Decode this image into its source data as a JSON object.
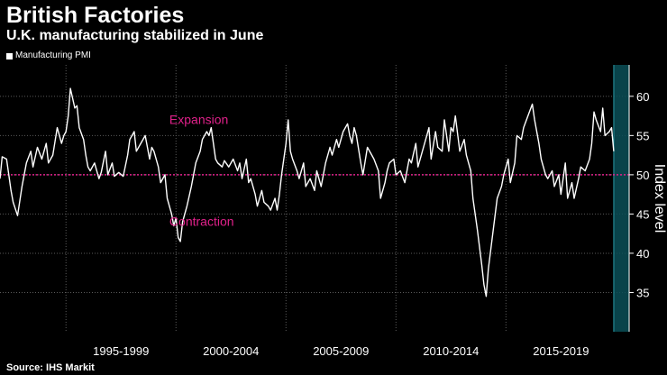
{
  "header": {
    "title": "British Factories",
    "subtitle": "U.K. manufacturing stabilized in June"
  },
  "footer": {
    "source": "Source: IHS Markit"
  },
  "colors": {
    "background": "#000000",
    "line": "#ffffff",
    "reference": "#e0218a",
    "highlight": "#0b4f57",
    "grid": "#5a5a5a"
  },
  "chart_data": {
    "type": "line",
    "title": "British Factories",
    "subtitle": "U.K. manufacturing stabilized in June",
    "ylabel": "Index level",
    "xlabel": "",
    "ylim": [
      30,
      64
    ],
    "xlim": [
      1992.0,
      2020.6
    ],
    "yticks": [
      35,
      40,
      45,
      50,
      55,
      60
    ],
    "period_labels": [
      {
        "label": "1995-1999",
        "from": 1995,
        "to": 2000
      },
      {
        "label": "2000-2004",
        "from": 2000,
        "to": 2005
      },
      {
        "label": "2005-2009",
        "from": 2005,
        "to": 2010
      },
      {
        "label": "2010-2014",
        "from": 2010,
        "to": 2015
      },
      {
        "label": "2015-2019",
        "from": 2015,
        "to": 2020
      }
    ],
    "legend": [
      "Manufacturing PMI"
    ],
    "reference_line": {
      "value": 50
    },
    "annotations": [
      {
        "text": "Expansion",
        "x": 1999.7,
        "y": 56.5
      },
      {
        "text": "Contraction",
        "x": 1999.7,
        "y": 43.5
      }
    ],
    "highlight_range": [
      2019.9,
      2020.6
    ],
    "series": [
      {
        "name": "Manufacturing PMI",
        "points": [
          [
            1992.0,
            49.5
          ],
          [
            1992.1,
            52.3
          ],
          [
            1992.3,
            52.0
          ],
          [
            1992.5,
            48.0
          ],
          [
            1992.6,
            46.5
          ],
          [
            1992.8,
            44.8
          ],
          [
            1993.0,
            48.5
          ],
          [
            1993.2,
            51.5
          ],
          [
            1993.4,
            53.0
          ],
          [
            1993.5,
            51.0
          ],
          [
            1993.7,
            53.5
          ],
          [
            1993.9,
            52.0
          ],
          [
            1994.1,
            54.0
          ],
          [
            1994.2,
            51.5
          ],
          [
            1994.4,
            52.5
          ],
          [
            1994.6,
            56.0
          ],
          [
            1994.8,
            54.0
          ],
          [
            1994.9,
            55.0
          ],
          [
            1995.0,
            55.5
          ],
          [
            1995.1,
            57.5
          ],
          [
            1995.2,
            61.0
          ],
          [
            1995.4,
            58.5
          ],
          [
            1995.5,
            58.8
          ],
          [
            1995.6,
            56.0
          ],
          [
            1995.8,
            54.5
          ],
          [
            1995.9,
            52.5
          ],
          [
            1996.0,
            51.0
          ],
          [
            1996.1,
            50.5
          ],
          [
            1996.3,
            51.5
          ],
          [
            1996.5,
            49.5
          ],
          [
            1996.6,
            50.3
          ],
          [
            1996.8,
            53.0
          ],
          [
            1996.9,
            50.0
          ],
          [
            1997.1,
            51.5
          ],
          [
            1997.2,
            49.8
          ],
          [
            1997.4,
            50.3
          ],
          [
            1997.6,
            49.8
          ],
          [
            1997.8,
            52.5
          ],
          [
            1997.9,
            54.5
          ],
          [
            1998.1,
            55.5
          ],
          [
            1998.2,
            53.0
          ],
          [
            1998.4,
            54.0
          ],
          [
            1998.6,
            55.0
          ],
          [
            1998.8,
            52.0
          ],
          [
            1998.9,
            53.5
          ],
          [
            1999.0,
            53.0
          ],
          [
            1999.2,
            51.0
          ],
          [
            1999.3,
            49.0
          ],
          [
            1999.5,
            50.0
          ],
          [
            1999.6,
            47.0
          ],
          [
            1999.8,
            45.0
          ],
          [
            1999.9,
            43.5
          ],
          [
            2000.0,
            44.5
          ],
          [
            2000.1,
            42.0
          ],
          [
            2000.2,
            41.5
          ],
          [
            2000.3,
            44.0
          ],
          [
            2000.5,
            46.0
          ],
          [
            2000.7,
            48.5
          ],
          [
            2000.9,
            51.5
          ],
          [
            2001.1,
            53.0
          ],
          [
            2001.2,
            54.5
          ],
          [
            2001.4,
            55.5
          ],
          [
            2001.5,
            55.0
          ],
          [
            2001.6,
            56.0
          ],
          [
            2001.8,
            52.0
          ],
          [
            2001.9,
            51.5
          ],
          [
            2002.1,
            51.0
          ],
          [
            2002.2,
            51.8
          ],
          [
            2002.4,
            51.0
          ],
          [
            2002.6,
            52.0
          ],
          [
            2002.8,
            50.5
          ],
          [
            2002.9,
            51.5
          ],
          [
            2003.0,
            49.5
          ],
          [
            2003.2,
            52.0
          ],
          [
            2003.3,
            49.0
          ],
          [
            2003.4,
            49.5
          ],
          [
            2003.6,
            47.5
          ],
          [
            2003.7,
            46.0
          ],
          [
            2003.9,
            48.0
          ],
          [
            2004.0,
            46.5
          ],
          [
            2004.2,
            46.0
          ],
          [
            2004.3,
            45.5
          ],
          [
            2004.5,
            47.0
          ],
          [
            2004.6,
            45.5
          ],
          [
            2004.7,
            47.5
          ],
          [
            2004.8,
            50.0
          ],
          [
            2005.0,
            54.0
          ],
          [
            2005.1,
            57.0
          ],
          [
            2005.2,
            53.0
          ],
          [
            2005.3,
            52.0
          ],
          [
            2005.5,
            50.5
          ],
          [
            2005.6,
            49.5
          ],
          [
            2005.8,
            51.5
          ],
          [
            2005.9,
            48.5
          ],
          [
            2006.1,
            49.5
          ],
          [
            2006.3,
            48.0
          ],
          [
            2006.4,
            50.5
          ],
          [
            2006.6,
            48.5
          ],
          [
            2006.8,
            51.5
          ],
          [
            2007.0,
            53.5
          ],
          [
            2007.1,
            52.5
          ],
          [
            2007.3,
            54.5
          ],
          [
            2007.4,
            53.5
          ],
          [
            2007.6,
            55.5
          ],
          [
            2007.8,
            56.5
          ],
          [
            2007.9,
            55.0
          ],
          [
            2008.0,
            54.0
          ],
          [
            2008.1,
            56.0
          ],
          [
            2008.2,
            55.0
          ],
          [
            2008.4,
            51.5
          ],
          [
            2008.5,
            50.0
          ],
          [
            2008.7,
            53.5
          ],
          [
            2008.9,
            52.5
          ],
          [
            2009.0,
            52.0
          ],
          [
            2009.2,
            50.5
          ],
          [
            2009.3,
            47.0
          ],
          [
            2009.5,
            49.0
          ],
          [
            2009.6,
            50.5
          ],
          [
            2009.7,
            51.5
          ],
          [
            2009.9,
            52.0
          ],
          [
            2010.0,
            50.0
          ],
          [
            2010.2,
            50.5
          ],
          [
            2010.4,
            49.0
          ],
          [
            2010.6,
            52.0
          ],
          [
            2010.7,
            51.5
          ],
          [
            2010.9,
            54.0
          ],
          [
            2011.0,
            51.0
          ],
          [
            2011.2,
            53.0
          ],
          [
            2011.4,
            55.0
          ],
          [
            2011.5,
            56.0
          ],
          [
            2011.6,
            52.0
          ],
          [
            2011.8,
            55.5
          ],
          [
            2011.9,
            53.5
          ],
          [
            2012.1,
            53.0
          ],
          [
            2012.2,
            57.0
          ],
          [
            2012.4,
            53.0
          ],
          [
            2012.5,
            56.0
          ],
          [
            2012.6,
            55.5
          ],
          [
            2012.7,
            57.5
          ],
          [
            2012.9,
            53.0
          ],
          [
            2013.1,
            54.5
          ],
          [
            2013.2,
            52.5
          ],
          [
            2013.4,
            50.5
          ],
          [
            2013.5,
            47.0
          ],
          [
            2013.7,
            43.0
          ],
          [
            2013.9,
            38.5
          ],
          [
            2014.0,
            36.0
          ],
          [
            2014.1,
            34.5
          ],
          [
            2014.2,
            38.0
          ],
          [
            2014.4,
            42.5
          ],
          [
            2014.6,
            47.0
          ],
          [
            2014.8,
            48.5
          ],
          [
            2014.9,
            50.0
          ],
          [
            2015.1,
            52.0
          ],
          [
            2015.2,
            49.0
          ],
          [
            2015.4,
            51.5
          ],
          [
            2015.5,
            55.0
          ],
          [
            2015.7,
            54.5
          ],
          [
            2015.8,
            56.0
          ],
          [
            2016.0,
            57.5
          ],
          [
            2016.2,
            59.0
          ],
          [
            2016.3,
            57.0
          ],
          [
            2016.5,
            54.0
          ],
          [
            2016.6,
            52.0
          ],
          [
            2016.8,
            50.0
          ],
          [
            2016.9,
            49.5
          ],
          [
            2017.1,
            50.5
          ],
          [
            2017.2,
            48.5
          ],
          [
            2017.4,
            50.0
          ],
          [
            2017.5,
            47.5
          ],
          [
            2017.7,
            51.5
          ],
          [
            2017.8,
            47.0
          ],
          [
            2018.0,
            49.0
          ],
          [
            2018.1,
            47.0
          ],
          [
            2018.3,
            49.5
          ],
          [
            2018.4,
            51.0
          ],
          [
            2018.6,
            50.5
          ],
          [
            2018.8,
            52.0
          ],
          [
            2018.9,
            54.0
          ],
          [
            2019.0,
            58.0
          ],
          [
            2019.1,
            57.0
          ],
          [
            2019.3,
            55.5
          ],
          [
            2019.4,
            58.5
          ],
          [
            2019.5,
            55.0
          ],
          [
            2019.7,
            55.5
          ],
          [
            2019.8,
            56.0
          ],
          [
            2019.9,
            53.0
          ]
        ]
      }
    ]
  }
}
